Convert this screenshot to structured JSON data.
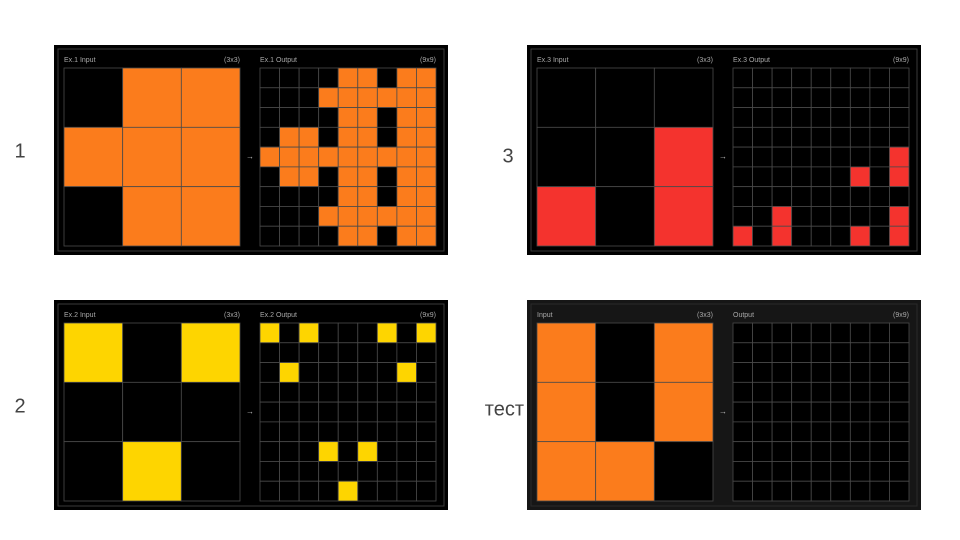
{
  "panels": [
    {
      "label": "1",
      "input_title": "Ex.1 Input",
      "input_size": "(3x3)",
      "arrow": "→",
      "output_title": "Ex.1 Output",
      "output_size": "(9x9)",
      "color": "#fb7c1c",
      "input": [
        [
          0,
          1,
          1
        ],
        [
          1,
          1,
          1
        ],
        [
          0,
          1,
          1
        ]
      ],
      "output": [
        [
          0,
          0,
          0,
          0,
          1,
          1,
          0,
          1,
          1
        ],
        [
          0,
          0,
          0,
          1,
          1,
          1,
          1,
          1,
          1
        ],
        [
          0,
          0,
          0,
          0,
          1,
          1,
          0,
          1,
          1
        ],
        [
          0,
          1,
          1,
          0,
          1,
          1,
          0,
          1,
          1
        ],
        [
          1,
          1,
          1,
          1,
          1,
          1,
          1,
          1,
          1
        ],
        [
          0,
          1,
          1,
          0,
          1,
          1,
          0,
          1,
          1
        ],
        [
          0,
          0,
          0,
          0,
          1,
          1,
          0,
          1,
          1
        ],
        [
          0,
          0,
          0,
          1,
          1,
          1,
          1,
          1,
          1
        ],
        [
          0,
          0,
          0,
          0,
          1,
          1,
          0,
          1,
          1
        ]
      ]
    },
    {
      "label": "3",
      "input_title": "Ex.3 Input",
      "input_size": "(3x3)",
      "arrow": "→",
      "output_title": "Ex.3 Output",
      "output_size": "(9x9)",
      "color": "#f4332e",
      "input": [
        [
          0,
          0,
          0
        ],
        [
          0,
          0,
          1
        ],
        [
          1,
          0,
          1
        ]
      ],
      "output": [
        [
          0,
          0,
          0,
          0,
          0,
          0,
          0,
          0,
          0
        ],
        [
          0,
          0,
          0,
          0,
          0,
          0,
          0,
          0,
          0
        ],
        [
          0,
          0,
          0,
          0,
          0,
          0,
          0,
          0,
          0
        ],
        [
          0,
          0,
          0,
          0,
          0,
          0,
          0,
          0,
          0
        ],
        [
          0,
          0,
          0,
          0,
          0,
          0,
          0,
          0,
          1
        ],
        [
          0,
          0,
          0,
          0,
          0,
          0,
          1,
          0,
          1
        ],
        [
          0,
          0,
          0,
          0,
          0,
          0,
          0,
          0,
          0
        ],
        [
          0,
          0,
          1,
          0,
          0,
          0,
          0,
          0,
          1
        ],
        [
          1,
          0,
          1,
          0,
          0,
          0,
          1,
          0,
          1
        ]
      ]
    },
    {
      "label": "2",
      "input_title": "Ex.2 Input",
      "input_size": "(3x3)",
      "arrow": "→",
      "output_title": "Ex.2 Output",
      "output_size": "(9x9)",
      "color": "#fed500",
      "input": [
        [
          1,
          0,
          1
        ],
        [
          0,
          0,
          0
        ],
        [
          0,
          1,
          0
        ]
      ],
      "output": [
        [
          1,
          0,
          1,
          0,
          0,
          0,
          1,
          0,
          1
        ],
        [
          0,
          0,
          0,
          0,
          0,
          0,
          0,
          0,
          0
        ],
        [
          0,
          1,
          0,
          0,
          0,
          0,
          0,
          1,
          0
        ],
        [
          0,
          0,
          0,
          0,
          0,
          0,
          0,
          0,
          0
        ],
        [
          0,
          0,
          0,
          0,
          0,
          0,
          0,
          0,
          0
        ],
        [
          0,
          0,
          0,
          0,
          0,
          0,
          0,
          0,
          0
        ],
        [
          0,
          0,
          0,
          1,
          0,
          1,
          0,
          0,
          0
        ],
        [
          0,
          0,
          0,
          0,
          0,
          0,
          0,
          0,
          0
        ],
        [
          0,
          0,
          0,
          0,
          1,
          0,
          0,
          0,
          0
        ]
      ]
    },
    {
      "label": "тест",
      "input_title": "Input",
      "input_size": "(3x3)",
      "arrow": "→",
      "output_title": "Output",
      "output_size": "(9x9)",
      "color": "#fb7c1c",
      "input": [
        [
          1,
          0,
          1
        ],
        [
          1,
          0,
          1
        ],
        [
          1,
          1,
          0
        ]
      ],
      "output": [
        [
          0,
          0,
          0,
          0,
          0,
          0,
          0,
          0,
          0
        ],
        [
          0,
          0,
          0,
          0,
          0,
          0,
          0,
          0,
          0
        ],
        [
          0,
          0,
          0,
          0,
          0,
          0,
          0,
          0,
          0
        ],
        [
          0,
          0,
          0,
          0,
          0,
          0,
          0,
          0,
          0
        ],
        [
          0,
          0,
          0,
          0,
          0,
          0,
          0,
          0,
          0
        ],
        [
          0,
          0,
          0,
          0,
          0,
          0,
          0,
          0,
          0
        ],
        [
          0,
          0,
          0,
          0,
          0,
          0,
          0,
          0,
          0
        ],
        [
          0,
          0,
          0,
          0,
          0,
          0,
          0,
          0,
          0
        ],
        [
          0,
          0,
          0,
          0,
          0,
          0,
          0,
          0,
          0
        ]
      ]
    }
  ]
}
